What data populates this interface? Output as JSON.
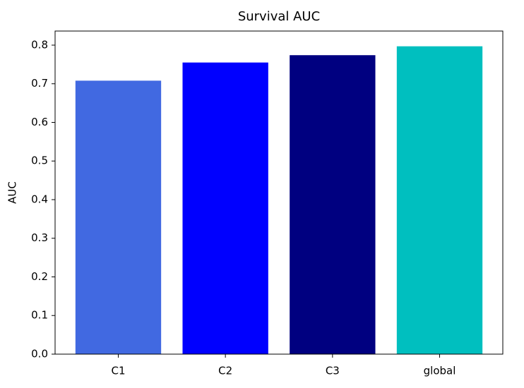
{
  "chart_data": {
    "type": "bar",
    "title": "Survival AUC",
    "y_label": "AUC",
    "categories": [
      "C1",
      "C2",
      "C3",
      "global"
    ],
    "values": [
      0.708,
      0.755,
      0.774,
      0.797
    ],
    "colors": [
      "#4169e1",
      "#0000ff",
      "#000080",
      "#00bfbf"
    ],
    "ylim": [
      0,
      0.8365
    ],
    "yticks": [
      {
        "value": 0,
        "label": "0.0"
      },
      0.1,
      0.2,
      0.3,
      0.4,
      0.5,
      0.6,
      0.7,
      0.8
    ],
    "grid": false
  }
}
